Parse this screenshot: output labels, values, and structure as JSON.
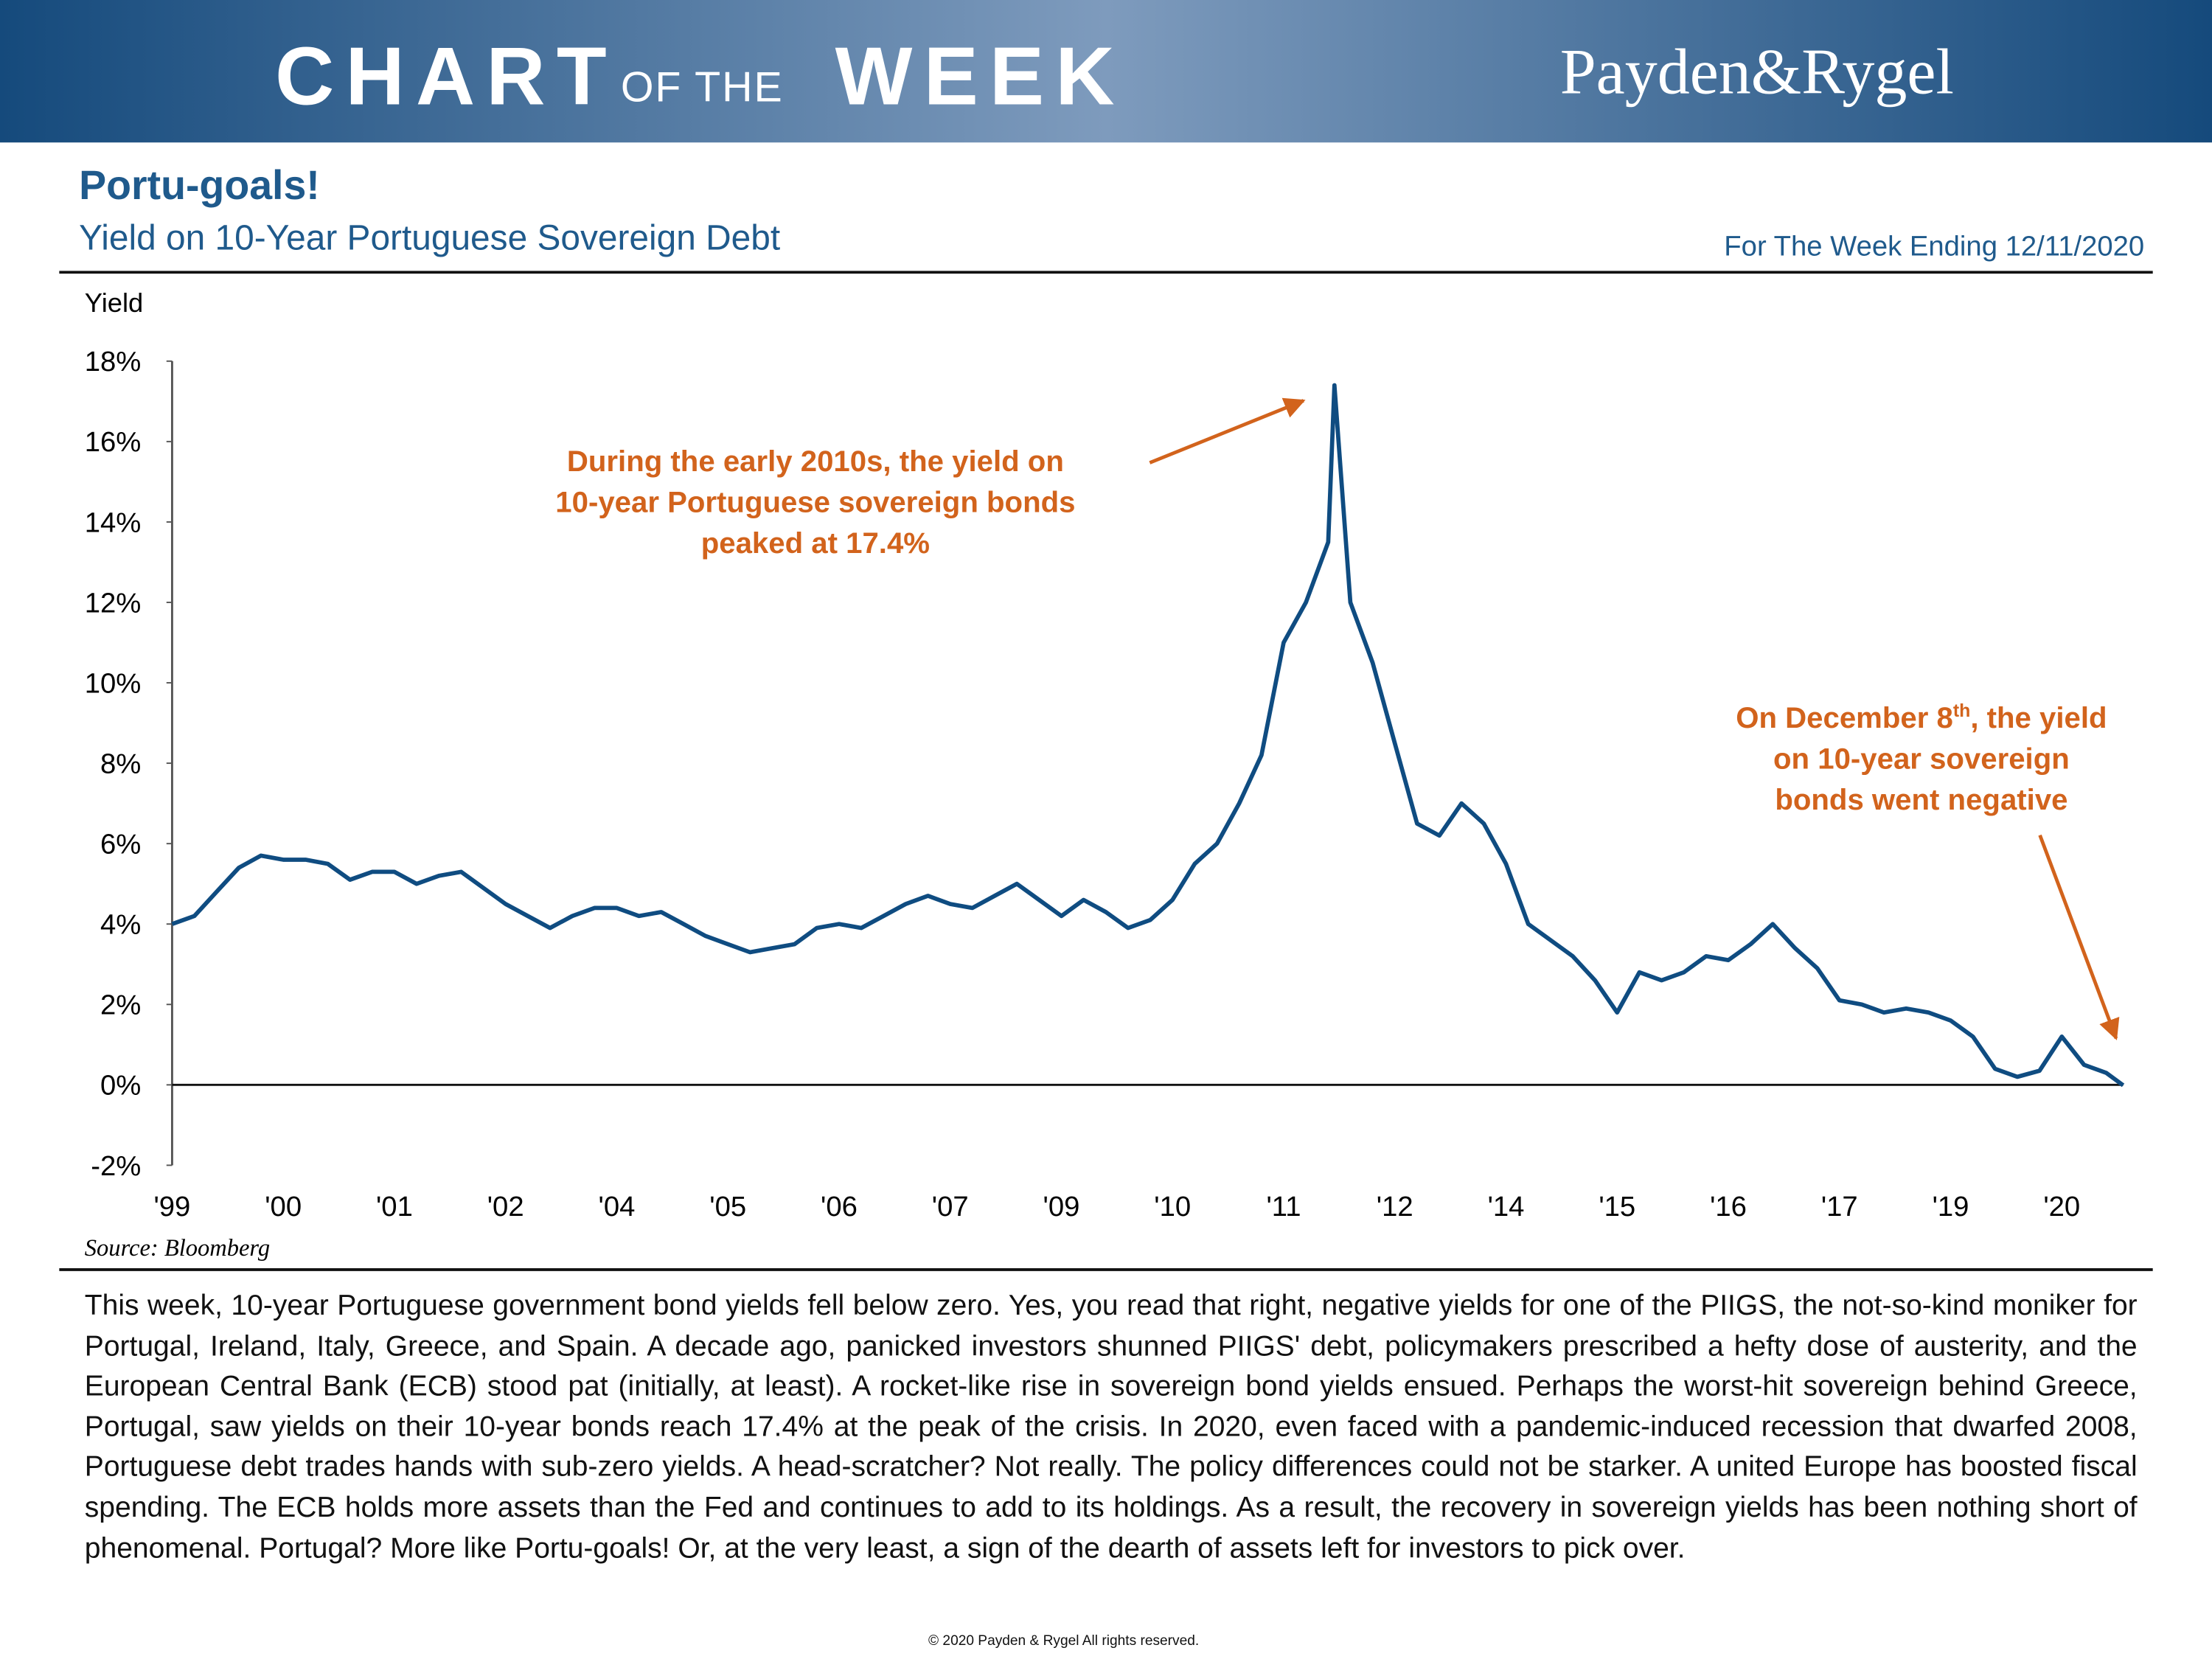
{
  "header": {
    "title_parts": [
      "CHART",
      "OF THE",
      "WEEK"
    ],
    "brand": "Payden&Rygel"
  },
  "chart_data": {
    "type": "line",
    "title": "Portu-goals!",
    "subtitle": "Yield on 10-Year Portuguese Sovereign Debt",
    "date_note": "For The Week Ending 12/11/2020",
    "y_label": "Yield",
    "source": "Source: Bloomberg",
    "color": "#0f4c81",
    "annotations": [
      {
        "lines": [
          "During the early 2010s, the yield on",
          "10-year Portuguese sovereign bonds",
          "peaked at 17.4%"
        ]
      },
      {
        "text_before": "On December 8",
        "superscript": "th",
        "text_after": ", the yield",
        "lines": [
          "on 10-year sovereign",
          "bonds went negative"
        ]
      }
    ],
    "x": [
      1999,
      1999.25,
      1999.5,
      1999.75,
      2000,
      2000.25,
      2000.5,
      2000.75,
      2001,
      2001.25,
      2001.5,
      2001.75,
      2002,
      2002.25,
      2002.5,
      2002.75,
      2003,
      2003.25,
      2003.5,
      2003.75,
      2004,
      2004.25,
      2004.5,
      2004.75,
      2005,
      2005.25,
      2005.5,
      2005.75,
      2006,
      2006.25,
      2006.5,
      2006.75,
      2007,
      2007.25,
      2007.5,
      2007.75,
      2008,
      2008.25,
      2008.5,
      2008.75,
      2009,
      2009.25,
      2009.5,
      2009.75,
      2010,
      2010.25,
      2010.5,
      2010.75,
      2011,
      2011.25,
      2011.5,
      2011.75,
      2012,
      2012.07,
      2012.25,
      2012.5,
      2012.75,
      2013,
      2013.25,
      2013.5,
      2013.75,
      2014,
      2014.25,
      2014.5,
      2014.75,
      2015,
      2015.25,
      2015.5,
      2015.75,
      2016,
      2016.25,
      2016.5,
      2016.75,
      2017,
      2017.25,
      2017.5,
      2017.75,
      2018,
      2018.25,
      2018.5,
      2018.75,
      2019,
      2019.25,
      2019.5,
      2019.75,
      2020,
      2020.25,
      2020.5,
      2020.75,
      2020.94
    ],
    "values": [
      4.0,
      4.2,
      4.8,
      5.4,
      5.7,
      5.6,
      5.6,
      5.5,
      5.1,
      5.3,
      5.3,
      5.0,
      5.2,
      5.3,
      4.9,
      4.5,
      4.2,
      3.9,
      4.2,
      4.4,
      4.4,
      4.2,
      4.3,
      4.0,
      3.7,
      3.5,
      3.3,
      3.4,
      3.5,
      3.9,
      4.0,
      3.9,
      4.2,
      4.5,
      4.7,
      4.5,
      4.4,
      4.7,
      5.0,
      4.6,
      4.2,
      4.6,
      4.3,
      3.9,
      4.1,
      4.6,
      5.5,
      6.0,
      7.0,
      8.2,
      11.0,
      12.0,
      13.5,
      17.4,
      12.0,
      10.5,
      8.5,
      6.5,
      6.2,
      7.0,
      6.5,
      5.5,
      4.0,
      3.6,
      3.2,
      2.6,
      1.8,
      2.8,
      2.6,
      2.8,
      3.2,
      3.1,
      3.5,
      4.0,
      3.4,
      2.9,
      2.1,
      2.0,
      1.8,
      1.9,
      1.8,
      1.6,
      1.2,
      0.4,
      0.2,
      0.35,
      1.2,
      0.5,
      0.3,
      -0.01
    ],
    "xlim": [
      1999,
      2020.94
    ],
    "xticks": [
      {
        "value": 1999,
        "label": "'99"
      },
      {
        "value": 2000.25,
        "label": "'00"
      },
      {
        "value": 2001.5,
        "label": "'01"
      },
      {
        "value": 2002.75,
        "label": "'02"
      },
      {
        "value": 2004,
        "label": "'04"
      },
      {
        "value": 2005.25,
        "label": "'05"
      },
      {
        "value": 2006.5,
        "label": "'06"
      },
      {
        "value": 2007.75,
        "label": "'07"
      },
      {
        "value": 2009,
        "label": "'09"
      },
      {
        "value": 2010.25,
        "label": "'10"
      },
      {
        "value": 2011.5,
        "label": "'11"
      },
      {
        "value": 2012.75,
        "label": "'12"
      },
      {
        "value": 2014,
        "label": "'14"
      },
      {
        "value": 2015.25,
        "label": "'15"
      },
      {
        "value": 2016.5,
        "label": "'16"
      },
      {
        "value": 2017.75,
        "label": "'17"
      },
      {
        "value": 2019,
        "label": "'19"
      },
      {
        "value": 2020.25,
        "label": "'20"
      }
    ],
    "ylim": [
      -2,
      18
    ],
    "yticks": [
      {
        "value": -2,
        "label": "-2%"
      },
      {
        "value": 0,
        "label": "0%"
      },
      {
        "value": 2,
        "label": "2%"
      },
      {
        "value": 4,
        "label": "4%"
      },
      {
        "value": 6,
        "label": "6%"
      },
      {
        "value": 8,
        "label": "8%"
      },
      {
        "value": 10,
        "label": "10%"
      },
      {
        "value": 12,
        "label": "12%"
      },
      {
        "value": 14,
        "label": "14%"
      },
      {
        "value": 16,
        "label": "16%"
      },
      {
        "value": 18,
        "label": "18%"
      }
    ]
  },
  "body": "This week, 10-year Portuguese government bond yields fell below zero. Yes, you read that right, negative yields for one of the PIIGS, the not-so-kind moniker for Portugal, Ireland, Italy, Greece, and Spain. A decade ago, panicked investors shunned PIIGS' debt, policymakers prescribed a hefty dose of austerity, and the European Central Bank (ECB) stood pat (initially, at least). A rocket-like rise in sovereign bond yields ensued. Perhaps the worst-hit sovereign behind Greece, Portugal, saw yields on their 10-year bonds reach 17.4% at the peak of the crisis. In 2020, even faced with a pandemic-induced recession that dwarfed 2008, Portuguese debt trades hands with sub-zero yields. A head-scratcher? Not really. The policy differences could not be starker. A united Europe has boosted fiscal spending. The ECB holds more assets than the Fed and continues to add to its holdings. As a result, the recovery in sovereign yields has been nothing short of phenomenal. Portugal? More like Portu-goals! Or, at the very least, a sign of the dearth of assets left for investors to pick over.",
  "footer": "© 2020 Payden & Rygel All rights reserved."
}
